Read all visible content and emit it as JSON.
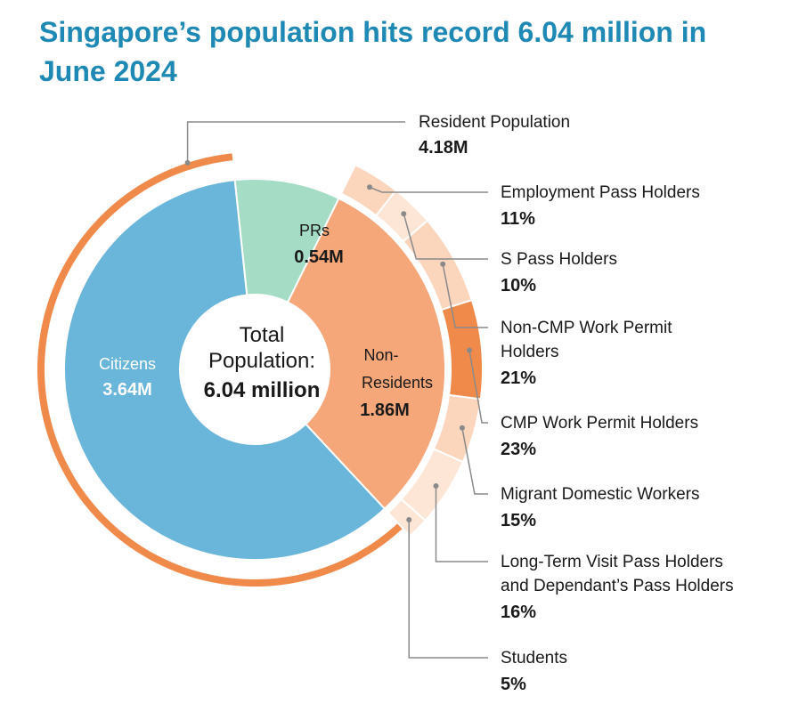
{
  "title": "Singapore’s population hits record 6.04 million in June 2024",
  "center": {
    "line1": "Total",
    "line2": "Population:",
    "line3": "6.04 million"
  },
  "colors": {
    "title": "#1f89b5",
    "citizens": "#6ab5da",
    "prs": "#a4dcc5",
    "non_residents": "#f5a77a",
    "outer_ring": "#f08a4b",
    "cmp": "#f08a4b",
    "outer_light": "#fbd5bc",
    "outer_pale": "#fde6d6",
    "leader": "#8a8a8a",
    "text": "#1a1a1a"
  },
  "chart_data": {
    "type": "pie",
    "inner": {
      "categories": [
        "Citizens",
        "PRs",
        "Non-Residents"
      ],
      "values": [
        3.64,
        0.54,
        1.86
      ],
      "unit": "M",
      "labels": [
        {
          "name": "Citizens",
          "value": "3.64M"
        },
        {
          "name": "PRs",
          "value": "0.54M"
        },
        {
          "name_line1": "Non-",
          "name_line2": "Residents",
          "value": "1.86M"
        }
      ]
    },
    "resident": {
      "name": "Resident Population",
      "value": 4.18,
      "value_label": "4.18M"
    },
    "non_resident_breakdown": {
      "categories": [
        "Employment Pass Holders",
        "S Pass Holders",
        "Non-CMP Work Permit Holders",
        "CMP Work Permit Holders",
        "Migrant Domestic Workers",
        "Long-Term Visit Pass Holders and Dependant’s Pass Holders",
        "Students"
      ],
      "values": [
        11,
        10,
        21,
        23,
        15,
        16,
        5
      ],
      "unit": "%",
      "labels": [
        {
          "lines": [
            "Employment Pass Holders"
          ],
          "pct": "11%"
        },
        {
          "lines": [
            "S Pass Holders"
          ],
          "pct": "10%"
        },
        {
          "lines": [
            "Non-CMP Work Permit",
            "Holders"
          ],
          "pct": "21%"
        },
        {
          "lines": [
            "CMP Work Permit Holders"
          ],
          "pct": "23%"
        },
        {
          "lines": [
            "Migrant Domestic Workers"
          ],
          "pct": "15%"
        },
        {
          "lines": [
            "Long-Term Visit Pass Holders",
            "and Dependant’s Pass Holders"
          ],
          "pct": "16%"
        },
        {
          "lines": [
            "Students"
          ],
          "pct": "5%"
        }
      ]
    }
  }
}
